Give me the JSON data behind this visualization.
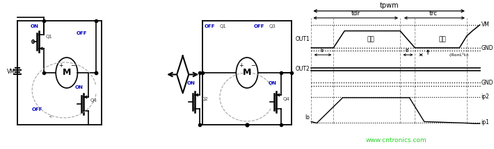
{
  "tpwm_label": "tpwm",
  "tdr_label": "tdr",
  "trc_label": "trc",
  "vm_label": "VM",
  "gnd_label": "GND",
  "out1_label": "OUT1",
  "out2_label": "OUT2",
  "io_label": "Io",
  "ip2_label": "ip2",
  "ip1_label": "ip1",
  "label_shijia": "施加",
  "label_zaisheng": "再生",
  "tr_label": "tr",
  "tf_label": "tf",
  "ronl_label": "-(RonL¹I₀)",
  "watermark": "www.cntronics.com",
  "watermark_color": "#00cc00",
  "dashed_color": "#999999",
  "line_color": "#000000",
  "blue_color": "#0000bb",
  "vm_text": "VM",
  "circuit1_on_q1": "ON",
  "circuit1_off_q3": "OFF",
  "circuit1_off_q2": "OFF",
  "circuit1_on_q4": "ON",
  "circuit2_off_q1": "OFF",
  "circuit2_q1": "Q1",
  "circuit2_off_q3": "OFF",
  "circuit2_q3": "Q3",
  "circuit2_on_q2": "ON",
  "circuit2_q2": "Q2",
  "circuit2_on_q4": "ON",
  "circuit2_q4": "Q4"
}
